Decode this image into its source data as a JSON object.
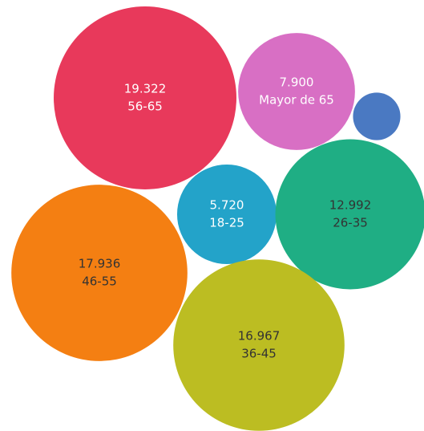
{
  "chart_data": {
    "type": "bubble",
    "categories": [
      "56-65",
      "Mayor de 65",
      null,
      "18-25",
      "26-35",
      "46-55",
      "36-45"
    ],
    "values": [
      19322,
      7900,
      1300,
      5720,
      12992,
      17936,
      16967
    ],
    "value_labels": [
      "19.322",
      "7.900",
      null,
      "5.720",
      "12.992",
      "17.936",
      "16.967"
    ],
    "colors": [
      "#e8395b",
      "#d86fc4",
      "#4a79c2",
      "#23a3c9",
      "#1fae84",
      "#f47f12",
      "#bcbd22"
    ]
  }
}
